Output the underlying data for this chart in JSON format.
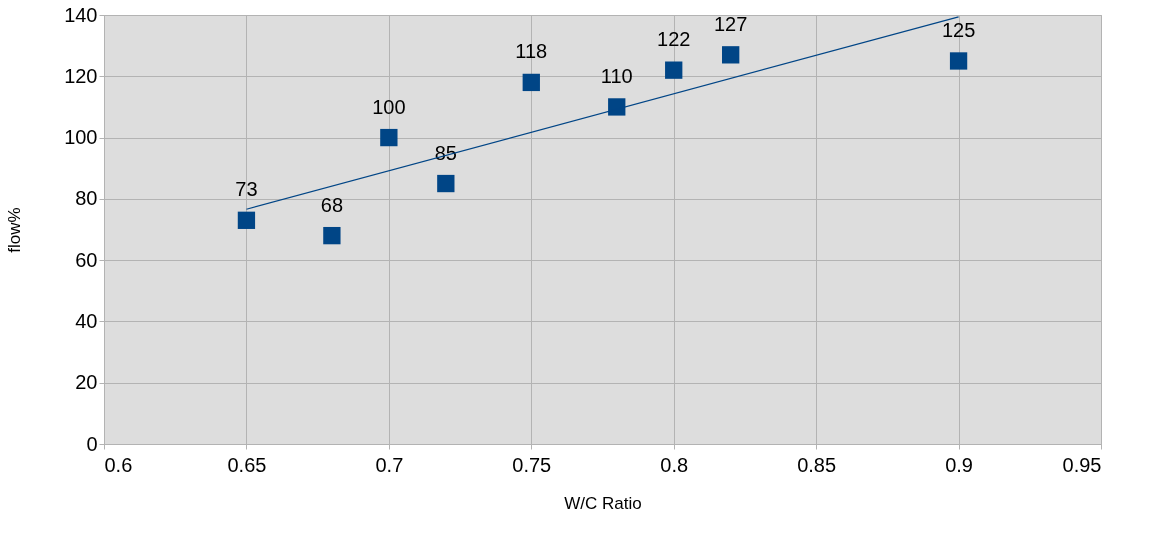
{
  "chart_data": {
    "type": "scatter",
    "xlabel": "W/C Ratio",
    "ylabel": "flow%",
    "x": [
      0.65,
      0.68,
      0.7,
      0.72,
      0.75,
      0.78,
      0.8,
      0.82,
      0.9
    ],
    "series": [
      {
        "color": "#004586",
        "values": [
          73,
          68,
          100,
          85,
          118,
          110,
          122,
          127,
          125
        ],
        "data_labels": true,
        "marker": "square"
      },
      {
        "type": "line",
        "color": "#004586",
        "x": [
          0.65,
          0.9
        ],
        "values": [
          76.6,
          139.4
        ],
        "line_style": "solid"
      }
    ],
    "xlim": [
      0.6,
      0.95
    ],
    "xticks": [
      0.6,
      0.65,
      0.7,
      0.75,
      0.8,
      0.85,
      0.9,
      0.95
    ],
    "ylim": [
      0,
      140
    ],
    "yticks": [
      0,
      20,
      40,
      60,
      80,
      100,
      120,
      140
    ],
    "grid": true
  }
}
